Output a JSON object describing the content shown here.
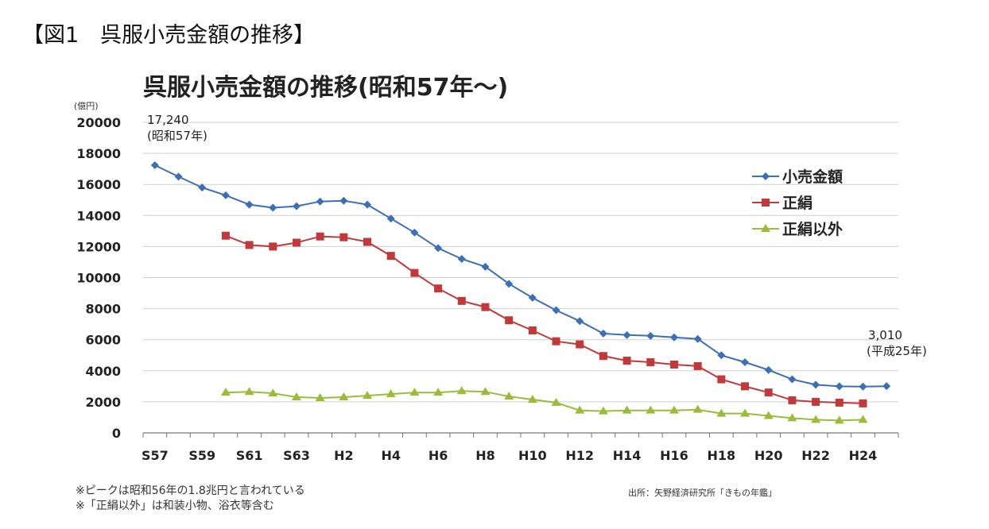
{
  "figure_caption": "【図1　呉服小売金額の推移】",
  "chart_data": {
    "type": "line",
    "title": "呉服小売金額の推移(昭和57年～)",
    "unit_label": "(億円)",
    "ylim": [
      0,
      20000
    ],
    "yticks": [
      "0",
      "2000",
      "4000",
      "6000",
      "8000",
      "10000",
      "12000",
      "14000",
      "16000",
      "18000",
      "20000"
    ],
    "categories": [
      "S57",
      "S58",
      "S59",
      "S60",
      "S61",
      "S62",
      "S63",
      "H1",
      "H2",
      "H3",
      "H4",
      "H5",
      "H6",
      "H7",
      "H8",
      "H9",
      "H10",
      "H11",
      "H12",
      "H13",
      "H14",
      "H15",
      "H16",
      "H17",
      "H18",
      "H19",
      "H20",
      "H21",
      "H22",
      "H23",
      "H24",
      "H25"
    ],
    "tick_labels": [
      "S57",
      "S59",
      "S61",
      "S63",
      "H2",
      "H4",
      "H6",
      "H8",
      "H10",
      "H12",
      "H14",
      "H16",
      "H18",
      "H20",
      "H22",
      "H24"
    ],
    "grid": true,
    "legend_position": "top-right",
    "series": [
      {
        "name": "小売金額",
        "color": "#3c6fb4",
        "marker": "diamond",
        "values": [
          17240,
          16500,
          15800,
          15300,
          14700,
          14500,
          14600,
          14900,
          14950,
          14700,
          13800,
          12900,
          11900,
          11200,
          10700,
          9600,
          8700,
          7900,
          7200,
          6400,
          6300,
          6250,
          6150,
          6050,
          5000,
          4550,
          4050,
          3450,
          3100,
          3000,
          2980,
          3010
        ]
      },
      {
        "name": "正絹",
        "color": "#c0393b",
        "marker": "square",
        "values": [
          null,
          null,
          null,
          12700,
          12100,
          12000,
          12250,
          12650,
          12600,
          12300,
          11400,
          10300,
          9300,
          8500,
          8100,
          7250,
          6600,
          5900,
          5700,
          4950,
          4650,
          4550,
          4400,
          4300,
          3450,
          3000,
          2600,
          2100,
          2000,
          1950,
          1900,
          null
        ]
      },
      {
        "name": "正絹以外",
        "color": "#9bbb3a",
        "marker": "triangle",
        "values": [
          null,
          null,
          null,
          2600,
          2650,
          2550,
          2300,
          2250,
          2300,
          2400,
          2500,
          2600,
          2600,
          2700,
          2650,
          2350,
          2150,
          1950,
          1450,
          1400,
          1450,
          1450,
          1450,
          1500,
          1250,
          1250,
          1100,
          950,
          850,
          800,
          850,
          null
        ]
      }
    ],
    "annotations": {
      "start_value": "17,240",
      "start_period": "(昭和57年)",
      "end_value": "3,010",
      "end_period": "(平成25年)"
    }
  },
  "notes": [
    "※ピークは昭和56年の1.8兆円と言われている",
    "※「正絹以外」は和装小物、浴衣等含む"
  ],
  "source": "出所：矢野経済研究所「きもの年鑑」"
}
